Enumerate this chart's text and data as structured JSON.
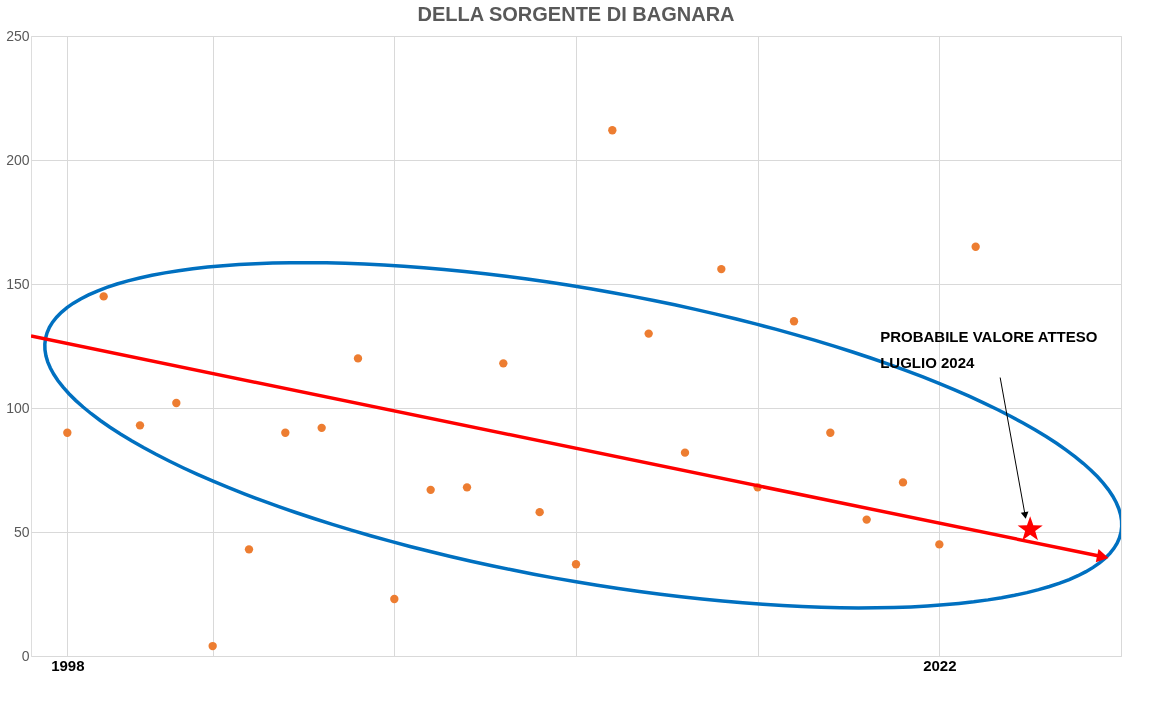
{
  "chart_data": {
    "type": "scatter",
    "title": "DELLA SORGENTE DI BAGNARA",
    "xlim": [
      1997,
      2027
    ],
    "ylim": [
      0,
      250
    ],
    "xticks": [
      {
        "value": 1998,
        "label": "1998"
      },
      {
        "value": 2002,
        "label": null
      },
      {
        "value": 2007,
        "label": null
      },
      {
        "value": 2012,
        "label": null
      },
      {
        "value": 2017,
        "label": null
      },
      {
        "value": 2022,
        "label": "2022"
      },
      {
        "value": 2027,
        "label": null
      }
    ],
    "yticks": [
      0,
      50,
      100,
      150,
      200,
      250
    ],
    "grid": true,
    "legend": false,
    "series": [
      {
        "type": "scatter",
        "marker": "circle",
        "color": "#ed7d31",
        "x": [
          1998,
          1999,
          2000,
          2001,
          2002,
          2003,
          2004,
          2005,
          2006,
          2007,
          2008,
          2009,
          2010,
          2011,
          2012,
          2013,
          2014,
          2015,
          2016,
          2017,
          2018,
          2019,
          2020,
          2021,
          2022,
          2023
        ],
        "values": [
          90,
          145,
          93,
          102,
          4,
          43,
          90,
          92,
          120,
          23,
          67,
          68,
          118,
          58,
          37,
          212,
          130,
          82,
          156,
          68,
          135,
          90,
          55,
          70,
          45,
          165
        ]
      },
      {
        "type": "line",
        "line_style": "solid",
        "color": "#ff0000",
        "x": [
          1997,
          2026.5
        ],
        "values": [
          129,
          40
        ]
      },
      {
        "type": "scatter",
        "marker": "star",
        "color": "#ff0000",
        "x": [
          2024.5
        ],
        "values": [
          51
        ]
      }
    ],
    "annotations": [
      "PROBABILE VALORE ATTESO\nLUGLIO 2024"
    ]
  }
}
